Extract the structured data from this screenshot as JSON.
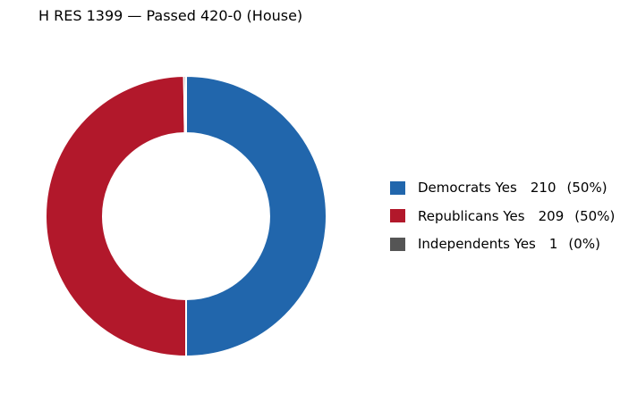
{
  "chart_data": {
    "type": "pie",
    "title": "H RES 1399 — Passed 420-0 (House)",
    "donut": true,
    "legend_position": "right",
    "slices": [
      {
        "label": "Democrats Yes",
        "value": 210,
        "percent_label": "(50%)",
        "color": "#2166ac"
      },
      {
        "label": "Republicans Yes",
        "value": 209,
        "percent_label": "(50%)",
        "color": "#b2182b"
      },
      {
        "label": "Independents Yes",
        "value": 1,
        "percent_label": "(0%)",
        "color": "#555555"
      }
    ]
  }
}
